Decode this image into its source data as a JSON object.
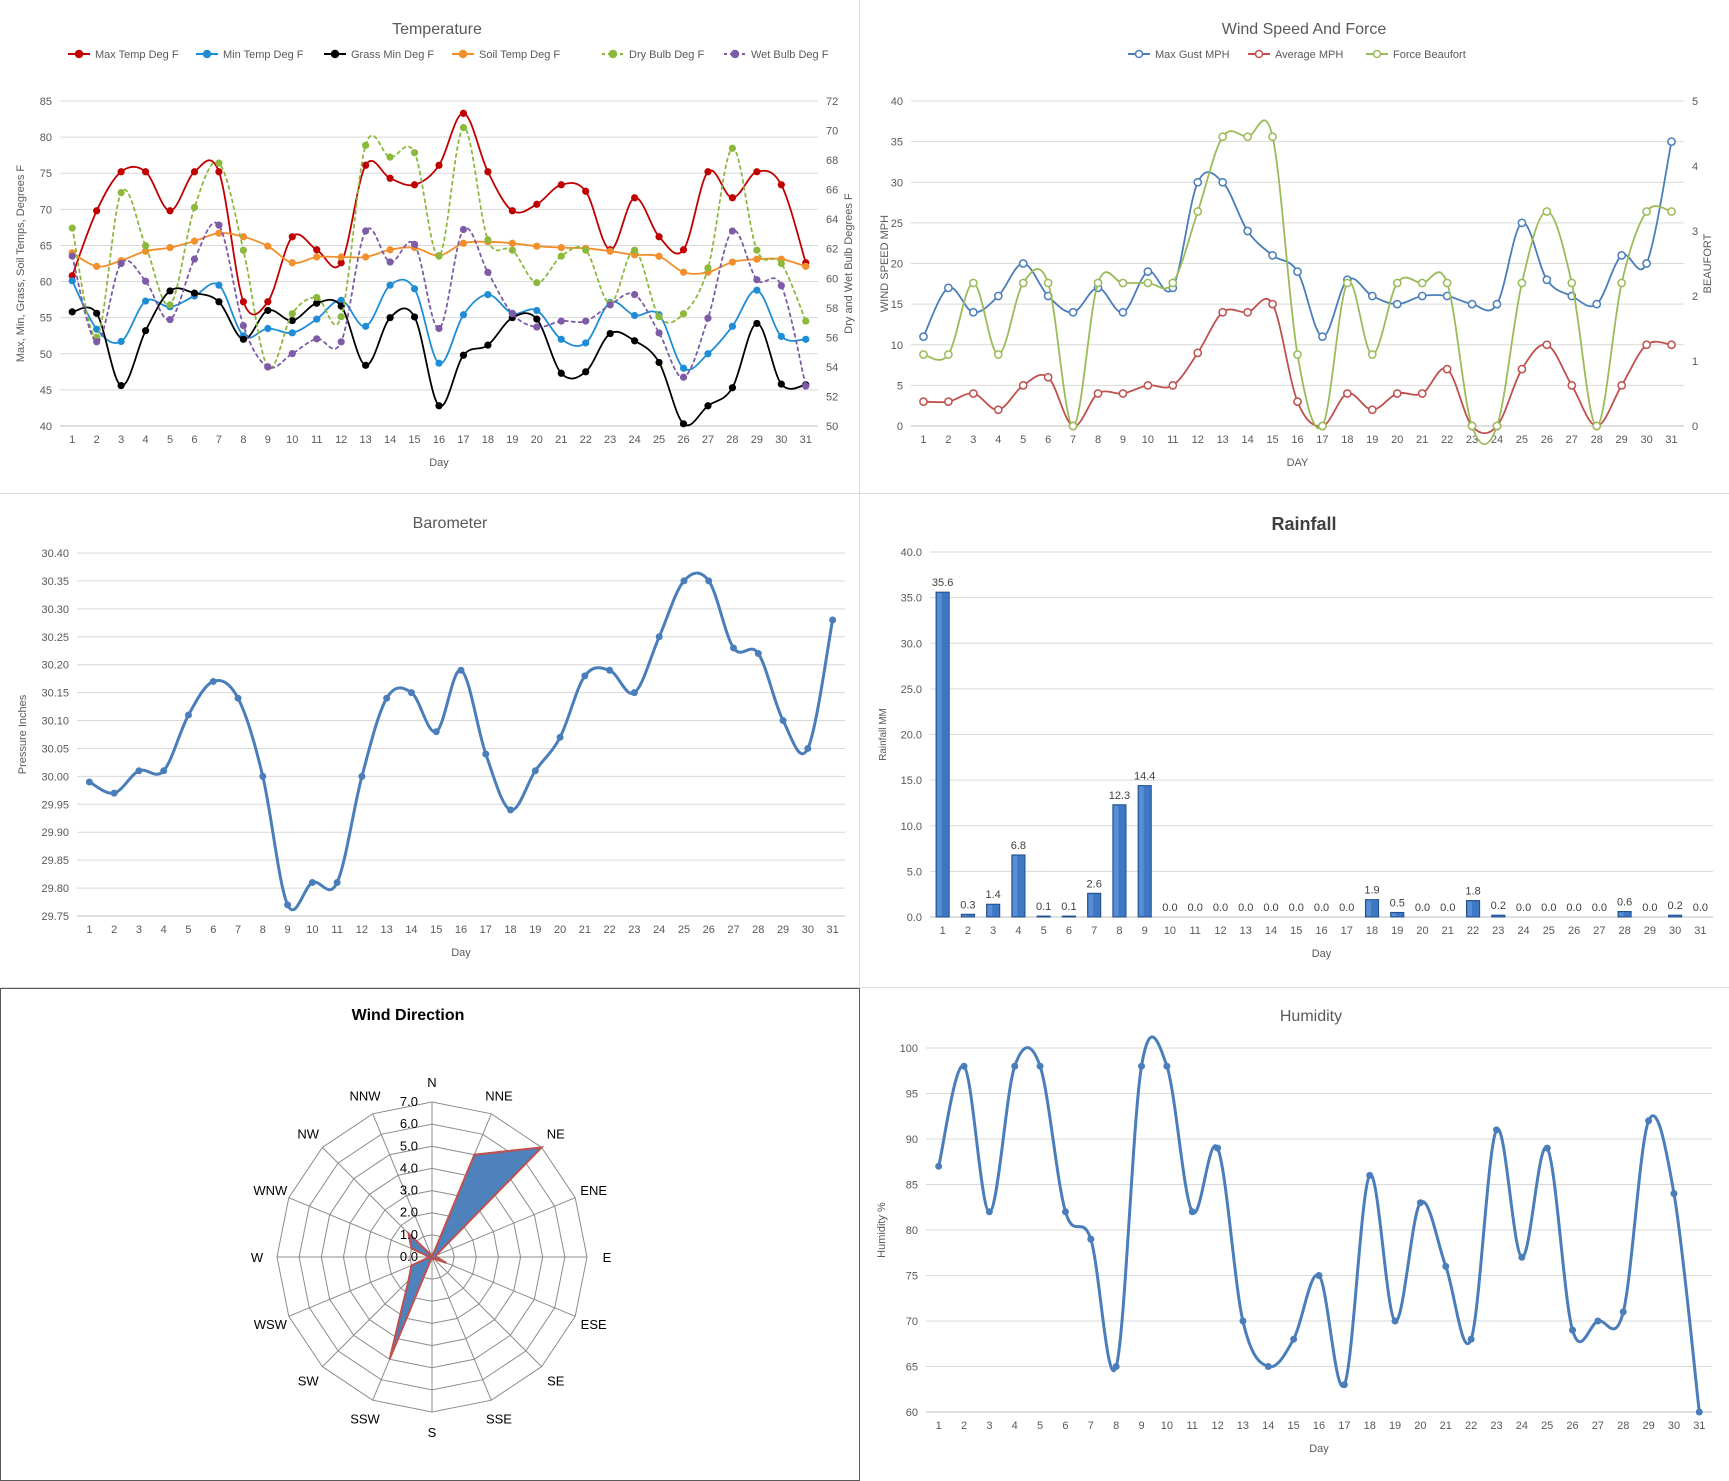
{
  "chart_data": [
    {
      "id": "temperature",
      "type": "line",
      "title": "Temperature",
      "xlabel": "Day",
      "ylabel": "Max, Min, Grass, Soil Temps, Degrees F",
      "y2label": "Dry and Wet Bulb Degrees F",
      "x": [
        1,
        2,
        3,
        4,
        5,
        6,
        7,
        8,
        9,
        10,
        11,
        12,
        13,
        14,
        15,
        16,
        17,
        18,
        19,
        20,
        21,
        22,
        23,
        24,
        25,
        26,
        27,
        28,
        29,
        30,
        31
      ],
      "ylim": [
        40,
        85
      ],
      "yticks": [
        40,
        45,
        50,
        55,
        60,
        65,
        70,
        75,
        80,
        85
      ],
      "y2lim": [
        50,
        72
      ],
      "y2ticks": [
        50,
        52,
        54,
        56,
        58,
        60,
        62,
        64,
        66,
        68,
        70,
        72
      ],
      "legend_position": "top",
      "grid": true,
      "series": [
        {
          "name": "Max Temp Deg F",
          "color": "#c00000",
          "axis": "left",
          "dash": false,
          "values": [
            60.8,
            69.8,
            75.2,
            75.2,
            69.8,
            75.2,
            75.2,
            57.2,
            57.2,
            66.2,
            64.4,
            62.6,
            76.1,
            74.3,
            73.4,
            76.1,
            83.3,
            75.2,
            69.8,
            70.7,
            73.4,
            72.5,
            64.4,
            71.6,
            66.2,
            64.4,
            75.2,
            71.6,
            75.2,
            73.4,
            62.6
          ]
        },
        {
          "name": "Min Temp Deg F",
          "color": "#1f8dd6",
          "axis": "left",
          "dash": false,
          "values": [
            60.1,
            53.4,
            51.7,
            57.3,
            56.5,
            58.0,
            59.5,
            52.5,
            53.5,
            52.9,
            54.8,
            57.4,
            53.8,
            59.5,
            59.0,
            48.7,
            55.4,
            58.2,
            55.6,
            56.0,
            52.0,
            51.5,
            57.1,
            55.3,
            55.4,
            48.0,
            50.0,
            53.8,
            58.8,
            52.4,
            52.0
          ]
        },
        {
          "name": "Grass Min Deg F",
          "color": "#000000",
          "axis": "left",
          "dash": false,
          "values": [
            55.8,
            55.6,
            45.6,
            53.2,
            58.7,
            58.4,
            57.2,
            52.0,
            56.0,
            54.6,
            57.0,
            56.6,
            48.4,
            55.0,
            55.1,
            42.8,
            49.8,
            51.2,
            55.0,
            54.8,
            47.3,
            47.5,
            52.8,
            51.8,
            48.8,
            40.3,
            42.8,
            45.3,
            54.2,
            45.8,
            45.7
          ]
        },
        {
          "name": "Soil Temp Deg F",
          "color": "#f28e2b",
          "axis": "left",
          "dash": false,
          "values": [
            64.0,
            62.1,
            62.9,
            64.2,
            64.7,
            65.6,
            66.7,
            66.2,
            64.9,
            62.6,
            63.4,
            63.4,
            63.4,
            64.4,
            64.7,
            63.6,
            65.3,
            65.5,
            65.3,
            64.9,
            64.7,
            64.6,
            64.2,
            63.7,
            63.5,
            61.3,
            61.3,
            62.7,
            63.1,
            63.1,
            62.1
          ]
        },
        {
          "name": "Dry Bulb Deg F",
          "color": "#8cb83c",
          "axis": "right",
          "dash": true,
          "values": [
            63.4,
            56.0,
            65.8,
            62.2,
            58.2,
            64.8,
            67.8,
            61.9,
            54.0,
            57.6,
            58.7,
            57.4,
            69.0,
            68.2,
            68.5,
            61.5,
            70.2,
            62.6,
            61.9,
            59.7,
            61.5,
            61.9,
            58.3,
            61.9,
            57.4,
            57.6,
            60.7,
            68.8,
            61.9,
            61.0,
            57.1
          ]
        },
        {
          "name": "Wet Bulb Deg F",
          "color": "#7d5ba6",
          "axis": "right",
          "dash": true,
          "values": [
            61.5,
            55.7,
            61.0,
            59.8,
            57.2,
            61.3,
            63.6,
            56.8,
            54.0,
            54.9,
            55.9,
            55.7,
            63.2,
            61.1,
            62.3,
            56.6,
            63.3,
            60.4,
            57.6,
            56.7,
            57.1,
            57.1,
            58.2,
            58.9,
            56.3,
            53.3,
            57.3,
            63.2,
            59.9,
            59.5,
            52.7
          ]
        }
      ]
    },
    {
      "id": "wind",
      "type": "line",
      "title": "Wind Speed And Force",
      "xlabel": "DAY",
      "ylabel": "WIND SPEED MPH",
      "y2label": "BEAUFORT",
      "x": [
        1,
        2,
        3,
        4,
        5,
        6,
        7,
        8,
        9,
        10,
        11,
        12,
        13,
        14,
        15,
        16,
        17,
        18,
        19,
        20,
        21,
        22,
        23,
        24,
        25,
        26,
        27,
        28,
        29,
        30,
        31
      ],
      "ylim": [
        0,
        40
      ],
      "yticks": [
        0,
        5,
        10,
        15,
        20,
        25,
        30,
        35,
        40
      ],
      "y2lim": [
        0,
        5
      ],
      "y2ticks": [
        0,
        1,
        2,
        3,
        4,
        5
      ],
      "legend_position": "top",
      "grid": true,
      "series": [
        {
          "name": "Max Gust MPH",
          "color": "#4a7ebb",
          "axis": "left",
          "values": [
            11,
            17,
            14,
            16,
            20,
            16,
            14,
            17,
            14,
            19,
            17,
            30,
            30,
            24,
            21,
            19,
            11,
            18,
            16,
            15,
            16,
            16,
            15,
            15,
            25,
            18,
            16,
            15,
            21,
            20,
            35
          ]
        },
        {
          "name": "Average MPH",
          "color": "#c0504d",
          "axis": "left",
          "values": [
            3,
            3,
            4,
            2,
            5,
            6,
            0,
            4,
            4,
            5,
            5,
            9,
            14,
            14,
            15,
            3,
            0,
            4,
            2,
            4,
            4,
            7,
            0,
            0,
            7,
            10,
            5,
            0,
            5,
            10,
            10
          ]
        },
        {
          "name": "Force Beaufort",
          "color": "#9bbb59",
          "axis": "right",
          "values": [
            1.1,
            1.1,
            2.2,
            1.1,
            2.2,
            2.2,
            0,
            2.2,
            2.2,
            2.2,
            2.2,
            3.3,
            4.45,
            4.45,
            4.45,
            1.1,
            0,
            2.2,
            1.1,
            2.2,
            2.2,
            2.2,
            0,
            0,
            2.2,
            3.3,
            2.2,
            0,
            2.2,
            3.3,
            3.3
          ]
        }
      ]
    },
    {
      "id": "barometer",
      "type": "line",
      "title": "Barometer",
      "xlabel": "Day",
      "ylabel": "Pressure Inches",
      "x": [
        1,
        2,
        3,
        4,
        5,
        6,
        7,
        8,
        9,
        10,
        11,
        12,
        13,
        14,
        15,
        16,
        17,
        18,
        19,
        20,
        21,
        22,
        23,
        24,
        25,
        26,
        27,
        28,
        29,
        30,
        31
      ],
      "ylim": [
        29.75,
        30.4
      ],
      "yticks": [
        "29.75",
        "29.80",
        "29.85",
        "29.90",
        "29.95",
        "30.00",
        "30.05",
        "30.10",
        "30.15",
        "30.20",
        "30.25",
        "30.30",
        "30.35",
        "30.40"
      ],
      "grid": true,
      "series": [
        {
          "name": "",
          "color": "#4a7ebb",
          "values": [
            29.99,
            29.97,
            30.01,
            30.01,
            30.11,
            30.17,
            30.14,
            30.0,
            29.77,
            29.81,
            29.81,
            30.0,
            30.14,
            30.15,
            30.08,
            30.19,
            30.04,
            29.94,
            30.01,
            30.07,
            30.18,
            30.19,
            30.15,
            30.25,
            30.35,
            30.35,
            30.23,
            30.22,
            30.1,
            30.05,
            30.28
          ]
        }
      ]
    },
    {
      "id": "rainfall",
      "type": "bar",
      "title": "Rainfall",
      "xlabel": "Day",
      "ylabel": "Rainfall MM",
      "categories": [
        "1",
        "2",
        "3",
        "4",
        "5",
        "6",
        "7",
        "8",
        "9",
        "10",
        "11",
        "12",
        "13",
        "14",
        "15",
        "16",
        "17",
        "18",
        "19",
        "20",
        "21",
        "22",
        "23",
        "24",
        "25",
        "26",
        "27",
        "28",
        "29",
        "30",
        "31"
      ],
      "values": [
        35.6,
        0.3,
        1.4,
        6.8,
        0.1,
        0.1,
        2.6,
        12.3,
        14.4,
        0.0,
        0.0,
        0.0,
        0.0,
        0.0,
        0.0,
        0.0,
        0.0,
        1.9,
        0.5,
        0.0,
        0.0,
        1.8,
        0.2,
        0.0,
        0.0,
        0.0,
        0.0,
        0.6,
        0.0,
        0.2,
        0.0
      ],
      "labels": [
        "35.6",
        "0.3",
        "1.4",
        "6.8",
        "0.1",
        "0.1",
        "2.6",
        "12.3",
        "14.4",
        "0.0",
        "0.0",
        "0.0",
        "0.0",
        "0.0",
        "0.0",
        "0.0",
        "0.0",
        "1.9",
        "0.5",
        "0.0",
        "0.0",
        "1.8",
        "0.2",
        "0.0",
        "0.0",
        "0.0",
        "0.0",
        "0.6",
        "0.0",
        "0.2",
        "0.0"
      ],
      "ylim": [
        0,
        40
      ],
      "yticks": [
        "0.0",
        "5.0",
        "10.0",
        "15.0",
        "20.0",
        "25.0",
        "30.0",
        "35.0",
        "40.0"
      ],
      "color": "#3e78c5",
      "grid": true
    },
    {
      "id": "wind_direction",
      "type": "radar",
      "title": "Wind Direction",
      "directions": [
        "N",
        "NNE",
        "NE",
        "ENE",
        "E",
        "ESE",
        "SE",
        "SSE",
        "S",
        "SSW",
        "SW",
        "WSW",
        "W",
        "WNW",
        "NW",
        "NNW"
      ],
      "values": [
        0,
        5.0,
        7.0,
        0.2,
        0.2,
        0.7,
        0.1,
        0.1,
        0,
        5.0,
        1.5,
        1.0,
        0.1,
        1.0,
        1.5,
        0.1
      ],
      "rlim": [
        0,
        7
      ],
      "rticks": [
        "0.0",
        "1.0",
        "2.0",
        "3.0",
        "4.0",
        "5.0",
        "6.0",
        "7.0"
      ],
      "fill": "#4f81bd",
      "stroke": "#c0504d"
    },
    {
      "id": "humidity",
      "type": "line",
      "title": "Humidity",
      "xlabel": "Day",
      "ylabel": "Humidity %",
      "x": [
        1,
        2,
        3,
        4,
        5,
        6,
        7,
        8,
        9,
        10,
        11,
        12,
        13,
        14,
        15,
        16,
        17,
        18,
        19,
        20,
        21,
        22,
        23,
        24,
        25,
        26,
        27,
        28,
        29,
        30,
        31
      ],
      "ylim": [
        60,
        100
      ],
      "yticks": [
        60,
        65,
        70,
        75,
        80,
        85,
        90,
        95,
        100
      ],
      "grid": true,
      "series": [
        {
          "name": "",
          "color": "#4a7ebb",
          "values": [
            87,
            98,
            82,
            98,
            98,
            82,
            79,
            65,
            98,
            98,
            82,
            89,
            70,
            65,
            68,
            75,
            63,
            86,
            70,
            83,
            76,
            68,
            91,
            77,
            89,
            69,
            70,
            71,
            92,
            84,
            60
          ]
        }
      ]
    }
  ]
}
